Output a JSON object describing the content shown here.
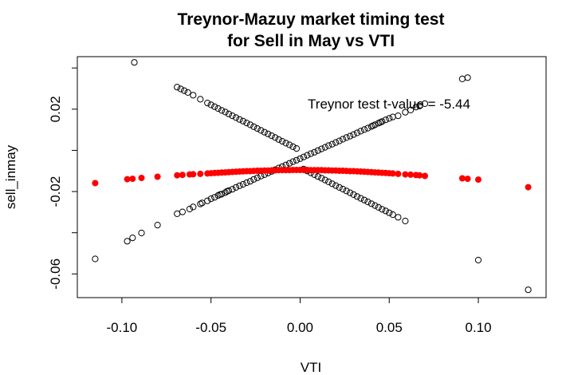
{
  "chart_data": {
    "type": "scatter",
    "title_line1": "Treynor-Mazuy market timing test",
    "title_line2": "for Sell in May vs VTI",
    "xlabel": "VTI",
    "ylabel": "sell_inmay",
    "xlim": [
      -0.125,
      0.138
    ],
    "ylim": [
      -0.0715,
      0.0455
    ],
    "x_ticks": [
      -0.1,
      -0.05,
      0.0,
      0.05,
      0.1
    ],
    "x_tick_labels": [
      "-0.10",
      "-0.05",
      "0.00",
      "0.05",
      "0.10"
    ],
    "y_ticks": [
      -0.06,
      -0.02,
      0.02
    ],
    "y_tick_labels": [
      "-0.06",
      "-0.02",
      "0.02"
    ],
    "y_minor_ticks": [
      -0.04,
      0.0,
      0.04
    ],
    "annotation": "Treynor test t-value = -5.44",
    "series": [
      {
        "kind": "open circles",
        "color": "#000000",
        "x": [
          -0.115,
          -0.097,
          -0.094,
          -0.089,
          -0.08,
          -0.069,
          -0.066,
          -0.062,
          -0.06,
          -0.056,
          -0.055,
          -0.052,
          -0.05,
          -0.048,
          -0.046,
          -0.045,
          -0.044,
          -0.042,
          -0.041,
          -0.04,
          -0.038,
          -0.036,
          -0.034,
          -0.032,
          -0.03,
          -0.028,
          -0.026,
          -0.024,
          -0.022,
          -0.02,
          -0.018,
          -0.016,
          -0.014,
          -0.012,
          -0.01,
          -0.008,
          -0.006,
          -0.004,
          -0.002,
          0.0,
          0.002,
          0.004,
          0.006,
          0.008,
          0.01,
          0.012,
          0.014,
          0.016,
          0.018,
          0.02,
          0.022,
          0.024,
          0.026,
          0.028,
          0.03,
          0.032,
          0.034,
          0.036,
          0.038,
          0.04,
          0.041,
          0.042,
          0.044,
          0.045,
          0.046,
          0.048,
          0.05,
          0.052,
          0.055,
          0.059,
          0.062,
          0.065,
          0.067,
          0.07,
          0.091,
          0.094,
          0.1,
          0.128
        ],
        "y": [
          -0.0527,
          -0.0441,
          -0.0425,
          -0.0401,
          -0.0363,
          -0.0308,
          -0.0299,
          -0.0285,
          -0.0275,
          -0.026,
          -0.0255,
          -0.0245,
          -0.0235,
          -0.0228,
          -0.0219,
          -0.0215,
          -0.0213,
          -0.0205,
          -0.0199,
          -0.0196,
          -0.0189,
          -0.018,
          -0.0172,
          -0.0165,
          -0.0157,
          -0.015,
          -0.0141,
          -0.0133,
          -0.0125,
          -0.0118,
          -0.011,
          -0.0102,
          -0.0094,
          -0.0086,
          -0.0079,
          -0.0071,
          -0.0063,
          -0.0055,
          -0.0048,
          -0.004,
          -0.0032,
          -0.0024,
          -0.0016,
          -0.0009,
          -0.0001,
          0.0007,
          0.0015,
          0.0023,
          0.003,
          0.0038,
          0.0046,
          0.0054,
          0.0062,
          0.0069,
          0.0077,
          0.0085,
          0.0093,
          0.0101,
          0.0108,
          0.0116,
          0.012,
          0.0124,
          0.0132,
          0.0136,
          0.014,
          0.0148,
          0.0155,
          0.0162,
          0.0168,
          0.0185,
          0.0196,
          0.021,
          0.0215,
          0.0227,
          0.0347,
          0.0353,
          -0.0533,
          -0.0677
        ]
      },
      {
        "kind": "open circles",
        "color": "#000000",
        "x": [
          -0.093,
          -0.069,
          -0.067,
          -0.065,
          -0.063,
          -0.06,
          -0.056,
          -0.052,
          -0.05,
          -0.048,
          -0.046,
          -0.044,
          -0.042,
          -0.04,
          -0.038,
          -0.036,
          -0.034,
          -0.032,
          -0.03,
          -0.028,
          -0.026,
          -0.024,
          -0.022,
          -0.02,
          -0.018,
          -0.016,
          -0.014,
          -0.012,
          -0.01,
          -0.008,
          -0.006,
          -0.004,
          -0.002,
          0.002,
          0.004,
          0.006,
          0.008,
          0.01,
          0.012,
          0.014,
          0.016,
          0.018,
          0.02,
          0.022,
          0.024,
          0.026,
          0.028,
          0.03,
          0.032,
          0.034,
          0.036,
          0.038,
          0.04,
          0.042,
          0.044,
          0.046,
          0.048,
          0.05,
          0.052,
          0.055,
          0.059
        ],
        "y": [
          0.0427,
          0.0307,
          0.0298,
          0.029,
          0.0281,
          0.0268,
          0.0248,
          0.023,
          0.0221,
          0.0212,
          0.0203,
          0.0194,
          0.0186,
          0.0177,
          0.0168,
          0.0159,
          0.015,
          0.0142,
          0.0133,
          0.0124,
          0.0115,
          0.0106,
          0.0097,
          0.0088,
          0.008,
          0.0071,
          0.0062,
          0.0053,
          0.0044,
          0.0035,
          0.0027,
          0.0018,
          0.0009,
          -0.0091,
          -0.01,
          -0.0109,
          -0.0118,
          -0.0127,
          -0.0135,
          -0.0144,
          -0.0153,
          -0.0162,
          -0.0171,
          -0.018,
          -0.0188,
          -0.0197,
          -0.0206,
          -0.0215,
          -0.0224,
          -0.0233,
          -0.0241,
          -0.025,
          -0.0259,
          -0.0268,
          -0.0277,
          -0.0286,
          -0.0294,
          -0.0303,
          -0.0312,
          -0.0325,
          -0.0343
        ]
      },
      {
        "kind": "filled circles",
        "color": "#ff0000",
        "x": [
          -0.115,
          -0.097,
          -0.094,
          -0.089,
          -0.08,
          -0.069,
          -0.066,
          -0.062,
          -0.06,
          -0.056,
          -0.052,
          -0.05,
          -0.048,
          -0.046,
          -0.044,
          -0.042,
          -0.04,
          -0.038,
          -0.036,
          -0.034,
          -0.032,
          -0.03,
          -0.028,
          -0.026,
          -0.024,
          -0.022,
          -0.02,
          -0.018,
          -0.016,
          -0.014,
          -0.012,
          -0.01,
          -0.008,
          -0.006,
          -0.004,
          -0.002,
          0.0,
          0.002,
          0.004,
          0.006,
          0.008,
          0.01,
          0.012,
          0.014,
          0.016,
          0.018,
          0.02,
          0.022,
          0.024,
          0.026,
          0.028,
          0.03,
          0.032,
          0.034,
          0.036,
          0.038,
          0.04,
          0.042,
          0.044,
          0.046,
          0.048,
          0.05,
          0.052,
          0.055,
          0.059,
          0.062,
          0.065,
          0.067,
          0.07,
          0.091,
          0.094,
          0.1,
          0.128
        ],
        "y": [
          -0.0159,
          -0.014,
          -0.0138,
          -0.0134,
          -0.0128,
          -0.0121,
          -0.0119,
          -0.0117,
          -0.0116,
          -0.0114,
          -0.0112,
          -0.0111,
          -0.011,
          -0.0109,
          -0.0108,
          -0.0107,
          -0.0106,
          -0.0105,
          -0.0104,
          -0.0103,
          -0.0102,
          -0.0101,
          -0.0101,
          -0.01,
          -0.0099,
          -0.0099,
          -0.0098,
          -0.0098,
          -0.0097,
          -0.0097,
          -0.0096,
          -0.0096,
          -0.0096,
          -0.0096,
          -0.0095,
          -0.0095,
          -0.0095,
          -0.0095,
          -0.0095,
          -0.0096,
          -0.0096,
          -0.0096,
          -0.0096,
          -0.0097,
          -0.0097,
          -0.0098,
          -0.0098,
          -0.0099,
          -0.0099,
          -0.01,
          -0.0101,
          -0.0101,
          -0.0102,
          -0.0103,
          -0.0104,
          -0.0105,
          -0.0106,
          -0.0107,
          -0.0108,
          -0.0109,
          -0.011,
          -0.0111,
          -0.0112,
          -0.0114,
          -0.0117,
          -0.0118,
          -0.012,
          -0.0121,
          -0.0124,
          -0.0136,
          -0.0138,
          -0.0142,
          -0.0179
        ]
      }
    ]
  }
}
